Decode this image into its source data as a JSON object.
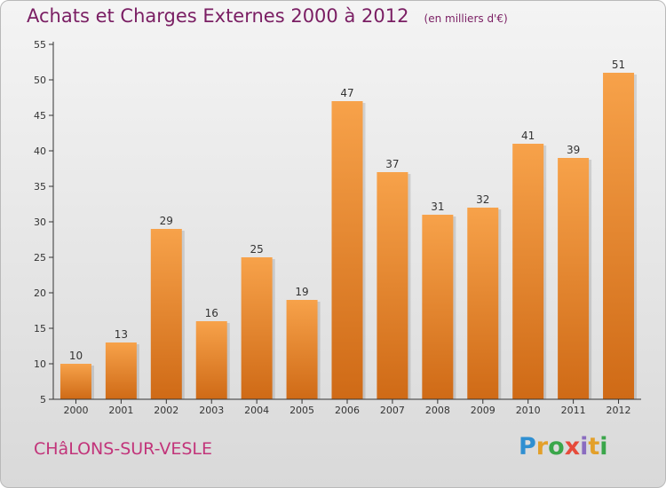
{
  "header": {
    "title": "Achats et Charges Externes 2000 à 2012",
    "unit_note": "(en milliers d'€)"
  },
  "footer": {
    "city": "CHâLONS-SUR-VESLE",
    "logo_text": "Proxiti"
  },
  "colors": {
    "title": "#7a1e63",
    "bar_light": "#f7a24a",
    "bar_dark": "#cf6a16",
    "axis": "#333333",
    "grid": "#ffffff"
  },
  "chart_data": {
    "type": "bar",
    "title": "Achats et Charges Externes 2000 à 2012",
    "subtitle": "(en milliers d'€)",
    "xlabel": "",
    "ylabel": "",
    "categories": [
      "2000",
      "2001",
      "2002",
      "2003",
      "2004",
      "2005",
      "2006",
      "2007",
      "2008",
      "2009",
      "2010",
      "2011",
      "2012"
    ],
    "values": [
      10,
      13,
      29,
      16,
      25,
      19,
      47,
      37,
      31,
      32,
      41,
      39,
      51
    ],
    "ylim": [
      5,
      55
    ],
    "yticks": [
      5,
      10,
      15,
      20,
      25,
      30,
      35,
      40,
      45,
      50,
      55
    ],
    "grid": false,
    "data_labels": true
  }
}
